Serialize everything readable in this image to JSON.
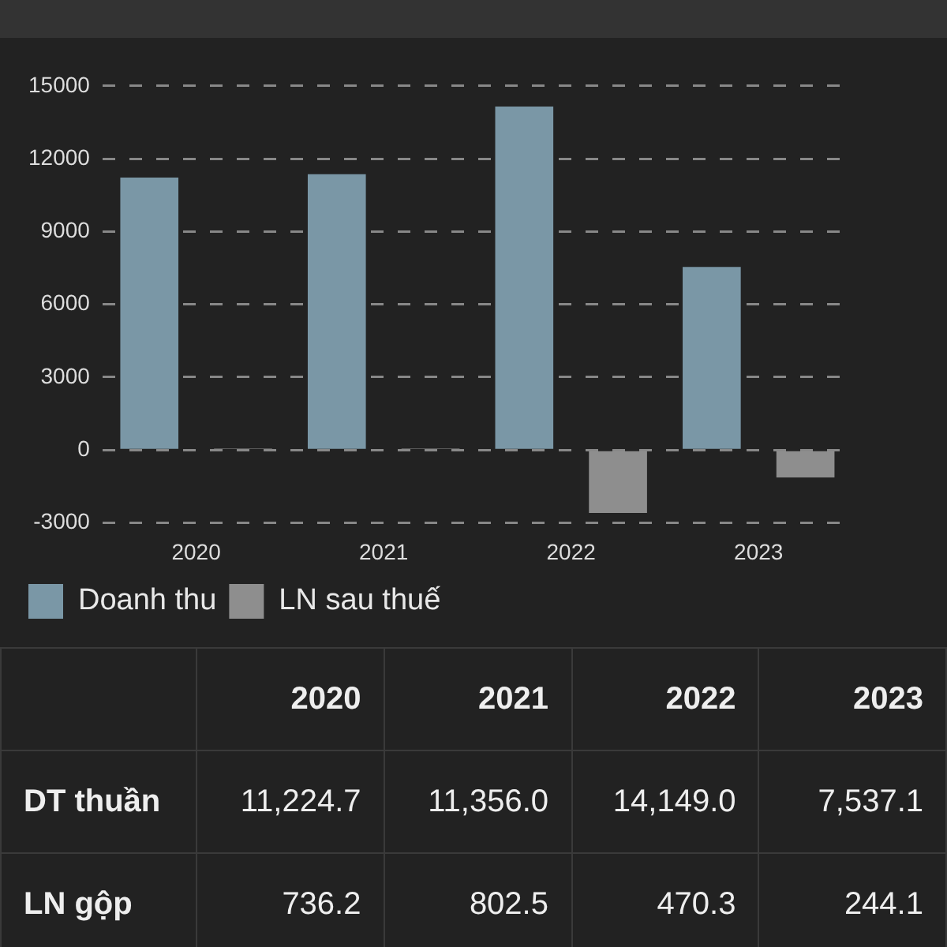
{
  "chart_data": {
    "type": "bar",
    "categories": [
      "2020",
      "2021",
      "2022",
      "2023"
    ],
    "series": [
      {
        "name": "Doanh thu",
        "color": "#7a97a6",
        "values": [
          11224.7,
          11356.0,
          14149.0,
          7537.1
        ]
      },
      {
        "name": "LN sau thuế",
        "color": "#8e8e8e",
        "values": [
          60,
          60,
          -2600,
          -1130
        ]
      }
    ],
    "ylim": [
      -3000,
      15000
    ],
    "yticks": [
      -3000,
      0,
      3000,
      6000,
      9000,
      12000,
      15000
    ],
    "grid": "y",
    "legend": "bottom left",
    "annotations": [
      "DT thuần",
      "11,224.7",
      "11,356.0",
      "14,149.0",
      "7,537.1",
      "LN gộp",
      "736.2",
      "802.5",
      "470.3",
      "244.1"
    ]
  }
}
